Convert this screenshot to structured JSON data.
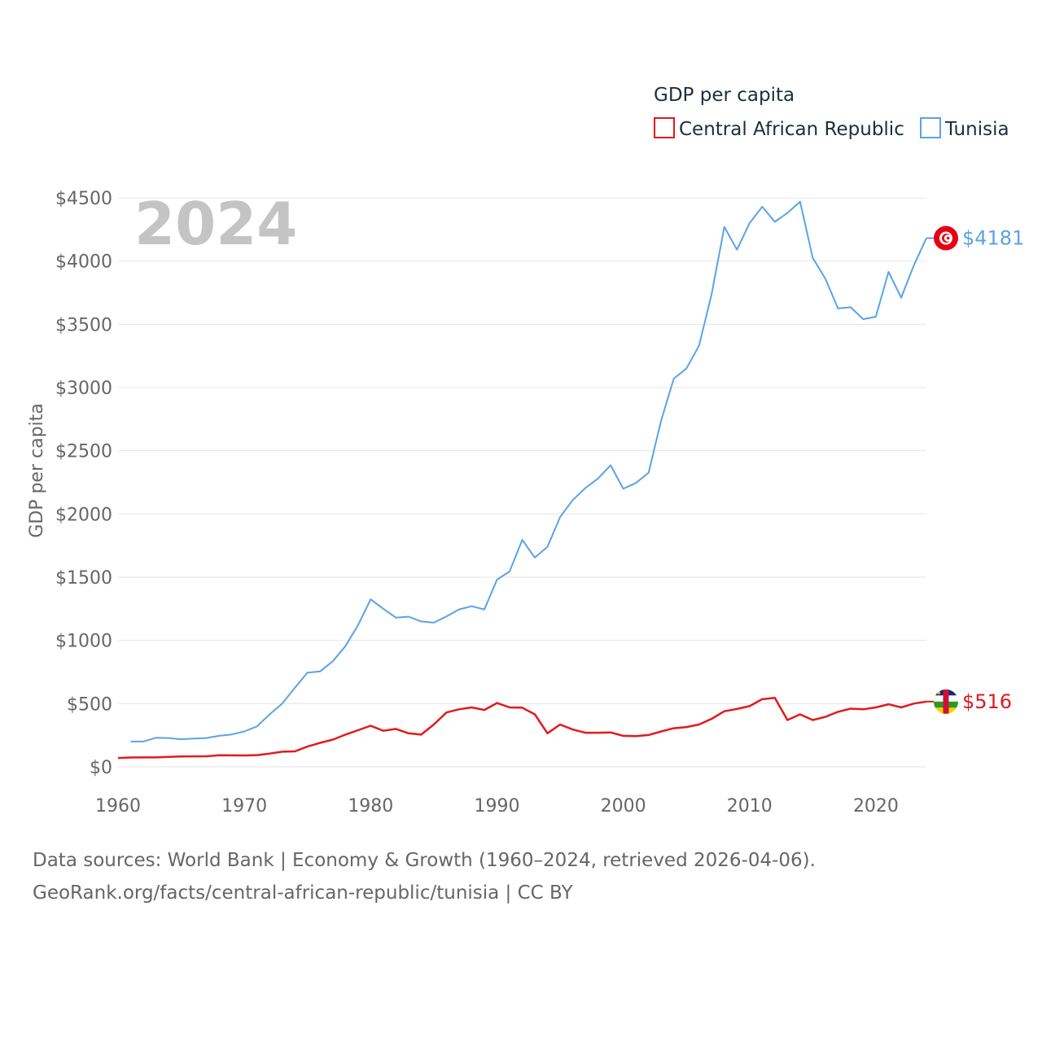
{
  "chart_data": {
    "type": "line",
    "legend_title": "GDP per capita",
    "ylabel": "GDP per capita",
    "xlabel": "",
    "year_overlay": "2024",
    "ylim": [
      0,
      4500
    ],
    "xlim": [
      1960,
      2024
    ],
    "y_ticks": [
      0,
      500,
      1000,
      1500,
      2000,
      2500,
      3000,
      3500,
      4000,
      4500
    ],
    "y_tick_labels": [
      "$0",
      "$500",
      "$1000",
      "$1500",
      "$2000",
      "$2500",
      "$3000",
      "$3500",
      "$4000",
      "$4500"
    ],
    "x_ticks": [
      1960,
      1970,
      1980,
      1990,
      2000,
      2010,
      2020
    ],
    "x_tick_labels": [
      "1960",
      "1970",
      "1980",
      "1990",
      "2000",
      "2010",
      "2020"
    ],
    "legend_position": "top-right",
    "grid": true,
    "x": [
      1960,
      1961,
      1962,
      1963,
      1964,
      1965,
      1966,
      1967,
      1968,
      1969,
      1970,
      1971,
      1972,
      1973,
      1974,
      1975,
      1976,
      1977,
      1978,
      1979,
      1980,
      1981,
      1982,
      1983,
      1984,
      1985,
      1986,
      1987,
      1988,
      1989,
      1990,
      1991,
      1992,
      1993,
      1994,
      1995,
      1996,
      1997,
      1998,
      1999,
      2000,
      2001,
      2002,
      2003,
      2004,
      2005,
      2006,
      2007,
      2008,
      2009,
      2010,
      2011,
      2012,
      2013,
      2014,
      2015,
      2016,
      2017,
      2018,
      2019,
      2020,
      2021,
      2022,
      2023,
      2024
    ],
    "series": [
      {
        "name": "Central African Republic",
        "color": "#e31a1c",
        "end_label": "$516",
        "flag": "central-african-republic-flag",
        "values": [
          70,
          74,
          75,
          75,
          79,
          82,
          83,
          84,
          92,
          91,
          90,
          93,
          105,
          120,
          122,
          160,
          190,
          215,
          255,
          290,
          325,
          285,
          300,
          265,
          255,
          335,
          430,
          455,
          470,
          450,
          505,
          470,
          468,
          415,
          265,
          335,
          295,
          270,
          270,
          272,
          245,
          243,
          252,
          280,
          305,
          315,
          335,
          380,
          440,
          458,
          480,
          535,
          545,
          370,
          415,
          370,
          395,
          435,
          460,
          455,
          470,
          495,
          470,
          500,
          516
        ]
      },
      {
        "name": "Tunisia",
        "color": "#5ba3e6",
        "end_label": "$4181",
        "flag": "tunisia-flag",
        "values": [
          null,
          200,
          200,
          230,
          228,
          218,
          224,
          228,
          245,
          256,
          280,
          320,
          415,
          500,
          625,
          745,
          755,
          835,
          955,
          1120,
          1325,
          1250,
          1180,
          1188,
          1150,
          1140,
          1190,
          1245,
          1270,
          1245,
          1480,
          1545,
          1795,
          1655,
          1740,
          1975,
          2110,
          2205,
          2280,
          2385,
          2200,
          2245,
          2325,
          2740,
          3070,
          3150,
          3330,
          3740,
          4270,
          4090,
          4300,
          4430,
          4310,
          4380,
          4470,
          4025,
          3860,
          3625,
          3635,
          3540,
          3560,
          3915,
          3710,
          3965,
          4181
        ]
      }
    ]
  },
  "source": {
    "line1": "Data sources: World Bank | Economy & Growth (1960–2024, retrieved 2026-04-06).",
    "line2": "GeoRank.org/facts/central-african-republic/tunisia | CC BY"
  }
}
